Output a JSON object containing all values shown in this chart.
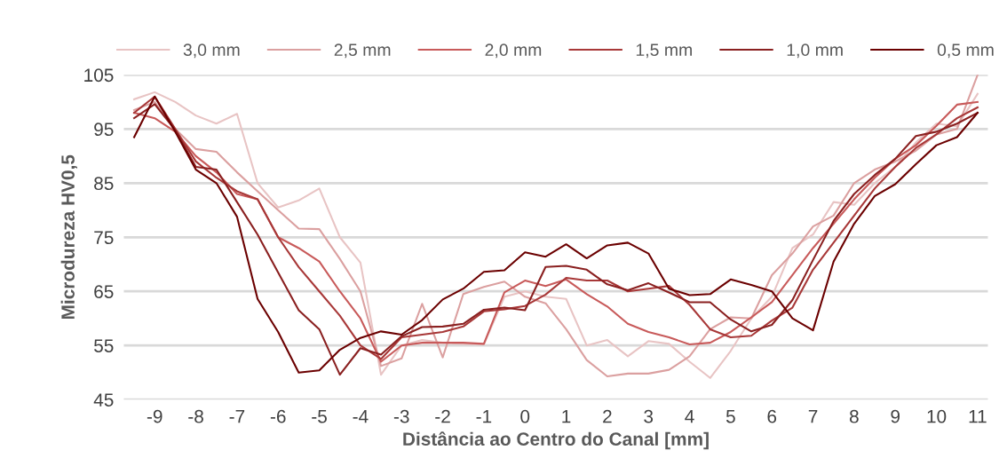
{
  "chart_data": {
    "type": "line",
    "xlabel": "Distância ao Centro do Canal [mm]",
    "ylabel": "Microdureza HV0,5",
    "x": [
      -9.5,
      -9,
      -8.5,
      -8,
      -7.5,
      -7,
      -6.5,
      -6,
      -5.5,
      -5,
      -4.5,
      -4,
      -3.5,
      -3,
      -2.5,
      -2,
      -1.5,
      -1,
      -0.5,
      0,
      0.5,
      1,
      1.5,
      2,
      2.5,
      3,
      3.5,
      4,
      4.5,
      5,
      5.5,
      6,
      6.5,
      7,
      7.5,
      8,
      8.5,
      9,
      9.5,
      10,
      10.5,
      11
    ],
    "series": [
      {
        "name": "3,0 mm",
        "color": "#e8c4c4",
        "values": [
          100.5,
          101.8,
          100,
          97.5,
          96,
          97.8,
          85,
          80.5,
          81.8,
          84,
          75,
          70.3,
          49.6,
          55,
          56,
          55.5,
          55.3,
          55.2,
          64,
          65,
          64,
          63.6,
          55,
          56,
          53,
          55.8,
          55.3,
          52,
          49,
          54,
          60,
          64,
          73,
          75.5,
          81.5,
          81,
          85,
          88,
          92.5,
          96,
          95.5,
          101.5
        ]
      },
      {
        "name": "2,5 mm",
        "color": "#dba0a0",
        "values": [
          98.5,
          100,
          95,
          91.3,
          90.8,
          87,
          83.5,
          80,
          76.6,
          76.5,
          71,
          65,
          51.2,
          52.6,
          62.7,
          52.8,
          64.5,
          65.8,
          66.8,
          64,
          62.8,
          58,
          52.3,
          49.3,
          49.8,
          49.8,
          50.5,
          53,
          58,
          60.2,
          60,
          68,
          72,
          77,
          79,
          85,
          87.5,
          89,
          91,
          94,
          95,
          105
        ]
      },
      {
        "name": "2,0 mm",
        "color": "#c85a5a",
        "values": [
          98,
          97,
          94.5,
          90,
          87,
          83,
          82,
          75,
          73,
          70.5,
          65,
          60,
          52,
          55,
          55.5,
          55.5,
          55.5,
          55.3,
          64.8,
          67,
          66,
          67.2,
          64.5,
          62.2,
          59,
          57.5,
          56.5,
          55.2,
          55.5,
          57.5,
          60.2,
          63,
          68,
          73,
          77.5,
          82,
          86,
          89.5,
          92,
          95.6,
          99.5,
          100
        ]
      },
      {
        "name": "1,5 mm",
        "color": "#a83838",
        "values": [
          98,
          101,
          95,
          89,
          86,
          83.5,
          82,
          75,
          69.5,
          65,
          60.5,
          55,
          52.5,
          56.5,
          57,
          57.5,
          58.5,
          61.3,
          61.7,
          62.3,
          64.4,
          67.5,
          67,
          67,
          65,
          65.5,
          66,
          62.5,
          58,
          56.5,
          56.8,
          59.6,
          62,
          69,
          74,
          79,
          84,
          88,
          91.5,
          94,
          97,
          99
        ]
      },
      {
        "name": "1,0 mm",
        "color": "#8a2020",
        "values": [
          97,
          99.6,
          94.8,
          88,
          87.5,
          81.5,
          75.5,
          68.5,
          61.5,
          58,
          49.6,
          54.5,
          53.3,
          56.7,
          58.4,
          58.5,
          59,
          61.6,
          62,
          61.5,
          69.5,
          69.7,
          69,
          66.3,
          65.2,
          66.5,
          64.8,
          63,
          63,
          59.8,
          57.6,
          58.8,
          63.4,
          70.8,
          78,
          83,
          86.5,
          89.5,
          93.7,
          94.5,
          96,
          98
        ]
      },
      {
        "name": "0,5 mm",
        "color": "#6b0000",
        "values": [
          93.5,
          101,
          94.5,
          87.5,
          85,
          78.8,
          63.6,
          57.5,
          50,
          50.4,
          54.2,
          56.4,
          57.6,
          57,
          59.7,
          63.5,
          65.5,
          68.6,
          68.9,
          72.2,
          71.4,
          73.7,
          71.1,
          73.5,
          74,
          72,
          65.5,
          64.3,
          64.5,
          67.2,
          66.2,
          65,
          60,
          57.8,
          70.5,
          77.5,
          82.6,
          84.8,
          88.5,
          92,
          93.5,
          98
        ]
      }
    ],
    "xlim": [
      -9.75,
      11.25
    ],
    "xticks": [
      -9,
      -8,
      -7,
      -6,
      -5,
      -4,
      -3,
      -2,
      -1,
      0,
      1,
      2,
      3,
      4,
      5,
      6,
      7,
      8,
      9,
      10,
      11
    ],
    "ylim": [
      45,
      105
    ],
    "yticks": [
      45,
      55,
      65,
      75,
      85,
      95,
      105
    ],
    "grid": "y",
    "legend": "top",
    "marker": "none",
    "line_style": "solid"
  }
}
